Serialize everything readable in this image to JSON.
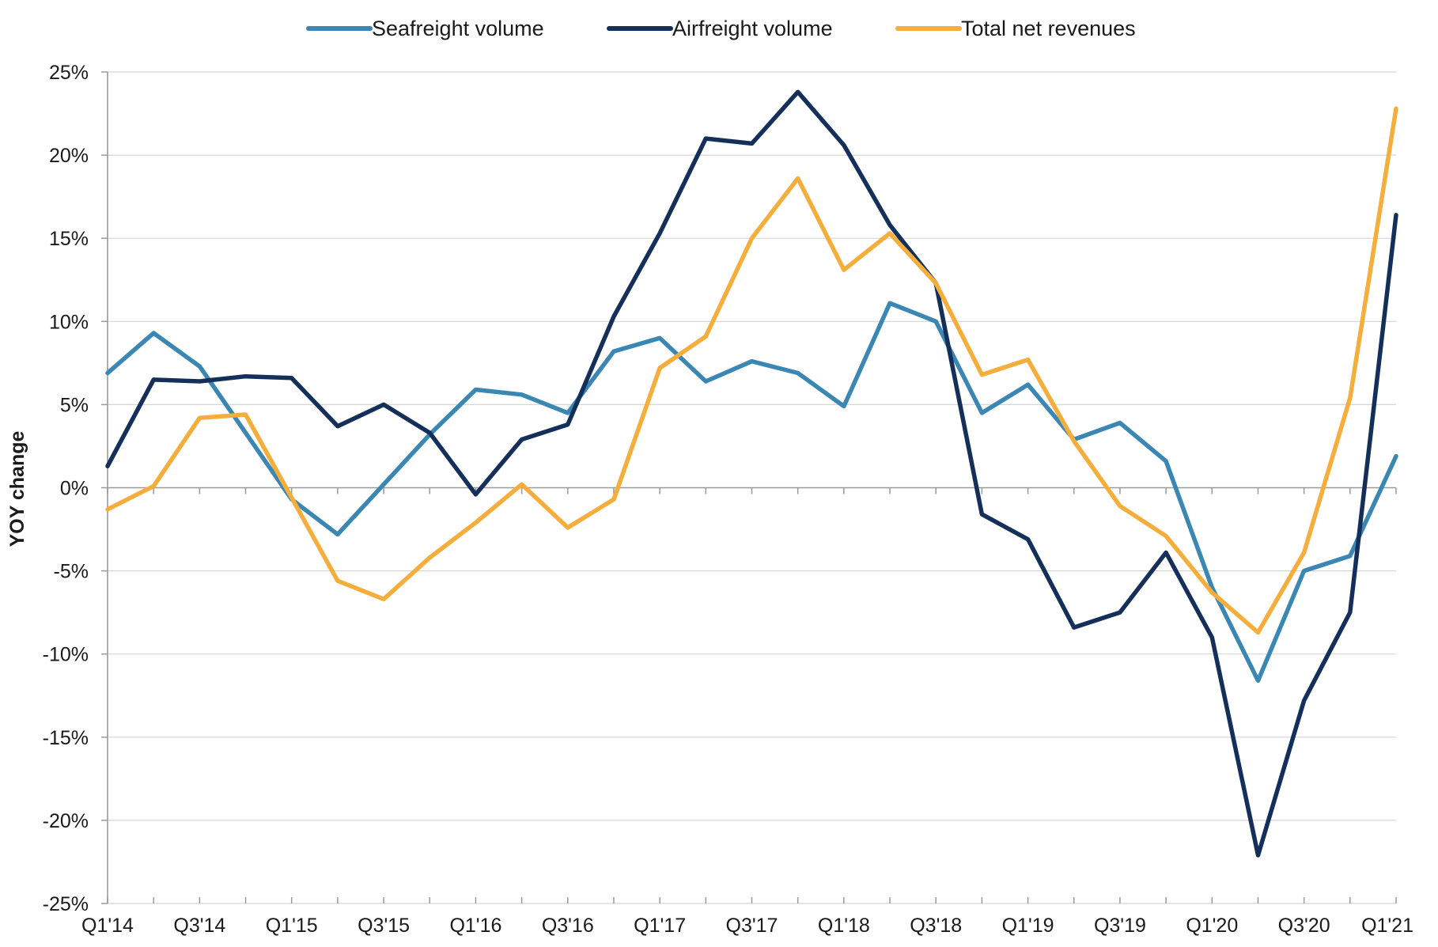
{
  "chart_data": {
    "type": "line",
    "title": "",
    "xlabel": "",
    "ylabel": "YOY change",
    "ylim": [
      -25,
      25
    ],
    "y_ticks": [
      25,
      20,
      15,
      10,
      5,
      0,
      -5,
      -10,
      -15,
      -20,
      -25
    ],
    "y_tick_labels": [
      "25%",
      "20%",
      "15%",
      "10%",
      "5%",
      "0%",
      "-5%",
      "-10%",
      "-15%",
      "-20%",
      "-25%"
    ],
    "grid": true,
    "legend_position": "top-center",
    "categories": [
      "Q1'14",
      "Q2'14",
      "Q3'14",
      "Q4'14",
      "Q1'15",
      "Q2'15",
      "Q3'15",
      "Q4'15",
      "Q1'16",
      "Q2'16",
      "Q3'16",
      "Q4'16",
      "Q1'17",
      "Q2'17",
      "Q3'17",
      "Q4'17",
      "Q1'18",
      "Q2'18",
      "Q3'18",
      "Q4'18",
      "Q1'19",
      "Q2'19",
      "Q3'19",
      "Q4'19",
      "Q1'20",
      "Q2'20",
      "Q3'20",
      "Q4'20",
      "Q1'21"
    ],
    "x_tick_labels": [
      "Q1'14",
      "Q3'14",
      "Q1'15",
      "Q3'15",
      "Q1'16",
      "Q3'16",
      "Q1'17",
      "Q3'17",
      "Q1'18",
      "Q3'18",
      "Q1'19",
      "Q3'19",
      "Q1'20",
      "Q3'20",
      "Q1'21"
    ],
    "series": [
      {
        "name": "Seafreight volume",
        "color": "#3a87b4",
        "values": [
          6.9,
          9.3,
          7.3,
          3.3,
          -0.7,
          -2.8,
          0.2,
          3.2,
          5.9,
          5.6,
          4.5,
          8.2,
          9.0,
          6.4,
          7.6,
          6.9,
          4.9,
          11.1,
          10.0,
          4.5,
          6.2,
          2.9,
          3.9,
          1.6,
          -6.0,
          -11.6,
          -5.0,
          -4.1,
          1.9
        ]
      },
      {
        "name": "Airfreight volume",
        "color": "#14305a",
        "values": [
          1.3,
          6.5,
          6.4,
          6.7,
          6.6,
          3.7,
          5.0,
          3.3,
          -0.4,
          2.9,
          3.8,
          10.3,
          15.3,
          21.0,
          20.7,
          23.8,
          20.6,
          15.8,
          12.3,
          -1.6,
          -3.1,
          -8.4,
          -7.5,
          -3.9,
          -9.0,
          -22.1,
          -12.8,
          -7.5,
          16.4
        ]
      },
      {
        "name": "Total net revenues",
        "color": "#f5ad3b",
        "values": [
          -1.3,
          0.1,
          4.2,
          4.4,
          -0.6,
          -5.6,
          -6.7,
          -4.2,
          -2.1,
          0.2,
          -2.4,
          -0.7,
          7.2,
          9.1,
          15.0,
          18.6,
          13.1,
          15.3,
          12.3,
          6.8,
          7.7,
          2.8,
          -1.1,
          -2.9,
          -6.3,
          -8.7,
          -3.9,
          5.4,
          22.8
        ]
      }
    ]
  }
}
